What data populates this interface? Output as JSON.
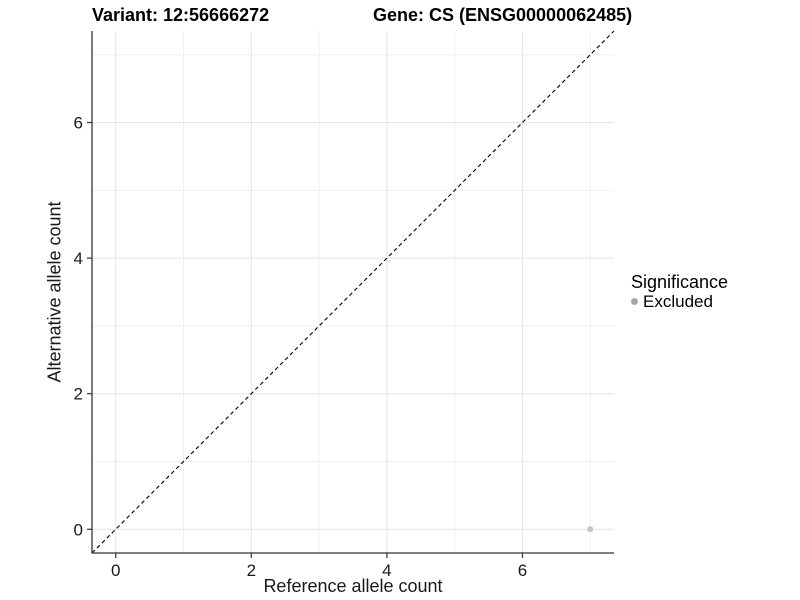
{
  "chart_data": {
    "type": "scatter",
    "title_left": "Variant: 12:56666272",
    "title_right": "Gene: CS (ENSG00000062485)",
    "xlabel": "Reference allele count",
    "ylabel": "Alternative allele count",
    "xlim": [
      -0.35,
      7.35
    ],
    "ylim": [
      -0.35,
      7.35
    ],
    "xticks": [
      0,
      2,
      4,
      6
    ],
    "yticks": [
      0,
      2,
      4,
      6
    ],
    "grid_major_x": [
      0,
      2,
      4,
      6
    ],
    "grid_minor_x": [
      1,
      3,
      5,
      7
    ],
    "grid_major_y": [
      0,
      2,
      4,
      6
    ],
    "grid_minor_y": [
      1,
      3,
      5,
      7
    ],
    "grid_on": true,
    "legend_position": "right",
    "reference_line": {
      "type": "identity",
      "x1": -0.35,
      "y1": -0.35,
      "x2": 7.35,
      "y2": 7.35,
      "style": "dashed",
      "color": "#000000"
    },
    "series": [
      {
        "name": "Excluded",
        "color": "#c4c4c4",
        "points": [
          {
            "x": 7,
            "y": 0
          }
        ]
      }
    ],
    "colors": {
      "grid_major": "#e4e4e4",
      "grid_minor": "#efefef",
      "axis_line": "#333333",
      "tick_mark": "#333333",
      "tick_text": "#1a1a1a"
    }
  },
  "legend": {
    "title": "Significance",
    "items": [
      {
        "label": "Excluded",
        "color": "#a6a6a6"
      }
    ]
  }
}
